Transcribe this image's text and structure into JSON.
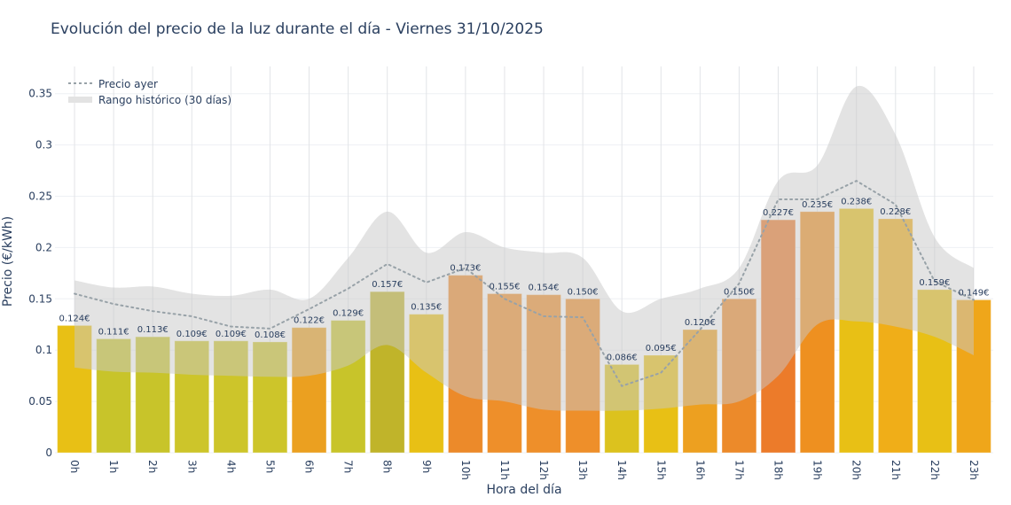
{
  "chart_data": {
    "type": "bar",
    "title": "Evolución del precio de la luz durante el día - Viernes 31/10/2025",
    "xlabel": "Hora del día",
    "ylabel": "Precio (€/kWh)",
    "ylim": [
      0,
      0.375
    ],
    "yticks": [
      0,
      0.05,
      0.1,
      0.15,
      0.2,
      0.25,
      0.3,
      0.35
    ],
    "ytick_labels": [
      "0",
      "0.05",
      "0.1",
      "0.15",
      "0.2",
      "0.25",
      "0.3",
      "0.35"
    ],
    "grid": true,
    "legend_position": "top-left",
    "categories": [
      "0h",
      "1h",
      "2h",
      "3h",
      "4h",
      "5h",
      "6h",
      "7h",
      "8h",
      "9h",
      "10h",
      "11h",
      "12h",
      "13h",
      "14h",
      "15h",
      "16h",
      "17h",
      "18h",
      "19h",
      "20h",
      "21h",
      "22h",
      "23h"
    ],
    "values": [
      0.124,
      0.111,
      0.113,
      0.109,
      0.109,
      0.108,
      0.122,
      0.129,
      0.157,
      0.135,
      0.173,
      0.155,
      0.154,
      0.15,
      0.086,
      0.095,
      0.12,
      0.15,
      0.227,
      0.235,
      0.238,
      0.228,
      0.159,
      0.149
    ],
    "value_labels": [
      "0.124€",
      "0.111€",
      "0.113€",
      "0.109€",
      "0.109€",
      "0.108€",
      "0.122€",
      "0.129€",
      "0.157€",
      "0.135€",
      "0.173€",
      "0.155€",
      "0.154€",
      "0.150€",
      "0.086€",
      "0.095€",
      "0.120€",
      "0.150€",
      "0.227€",
      "0.235€",
      "0.238€",
      "0.228€",
      "0.159€",
      "0.149€"
    ],
    "bar_colors": [
      "#e8c015",
      "#c8c42a",
      "#c8c42a",
      "#cdc52a",
      "#cdc52a",
      "#cdc52a",
      "#eba020",
      "#c8c42a",
      "#c0b42a",
      "#e8c015",
      "#ec8a2a",
      "#ee8f2a",
      "#ee8f2a",
      "#ee8f2a",
      "#dcc21e",
      "#e8c015",
      "#eda020",
      "#ec8a2a",
      "#ec7b2a",
      "#ee9020",
      "#e8c015",
      "#f0ae18",
      "#e8c015",
      "#efa61a"
    ],
    "series": [
      {
        "name": "Precio ayer",
        "style": "dotted",
        "color": "#98a2a8",
        "values": [
          0.155,
          0.145,
          0.138,
          0.133,
          0.123,
          0.121,
          0.14,
          0.16,
          0.184,
          0.166,
          0.18,
          0.15,
          0.133,
          0.132,
          0.065,
          0.078,
          0.12,
          0.165,
          0.247,
          0.247,
          0.265,
          0.242,
          0.167,
          0.149
        ]
      },
      {
        "name": "Rango histórico (30 días)",
        "style": "band",
        "color": "#d3d3d3",
        "upper": [
          0.168,
          0.161,
          0.162,
          0.155,
          0.153,
          0.159,
          0.15,
          0.19,
          0.235,
          0.195,
          0.215,
          0.2,
          0.195,
          0.19,
          0.138,
          0.15,
          0.16,
          0.18,
          0.265,
          0.28,
          0.357,
          0.31,
          0.21,
          0.18
        ],
        "lower": [
          0.083,
          0.079,
          0.078,
          0.076,
          0.075,
          0.074,
          0.075,
          0.085,
          0.105,
          0.078,
          0.055,
          0.05,
          0.042,
          0.041,
          0.041,
          0.043,
          0.047,
          0.05,
          0.075,
          0.125,
          0.128,
          0.123,
          0.113,
          0.095
        ]
      }
    ]
  }
}
